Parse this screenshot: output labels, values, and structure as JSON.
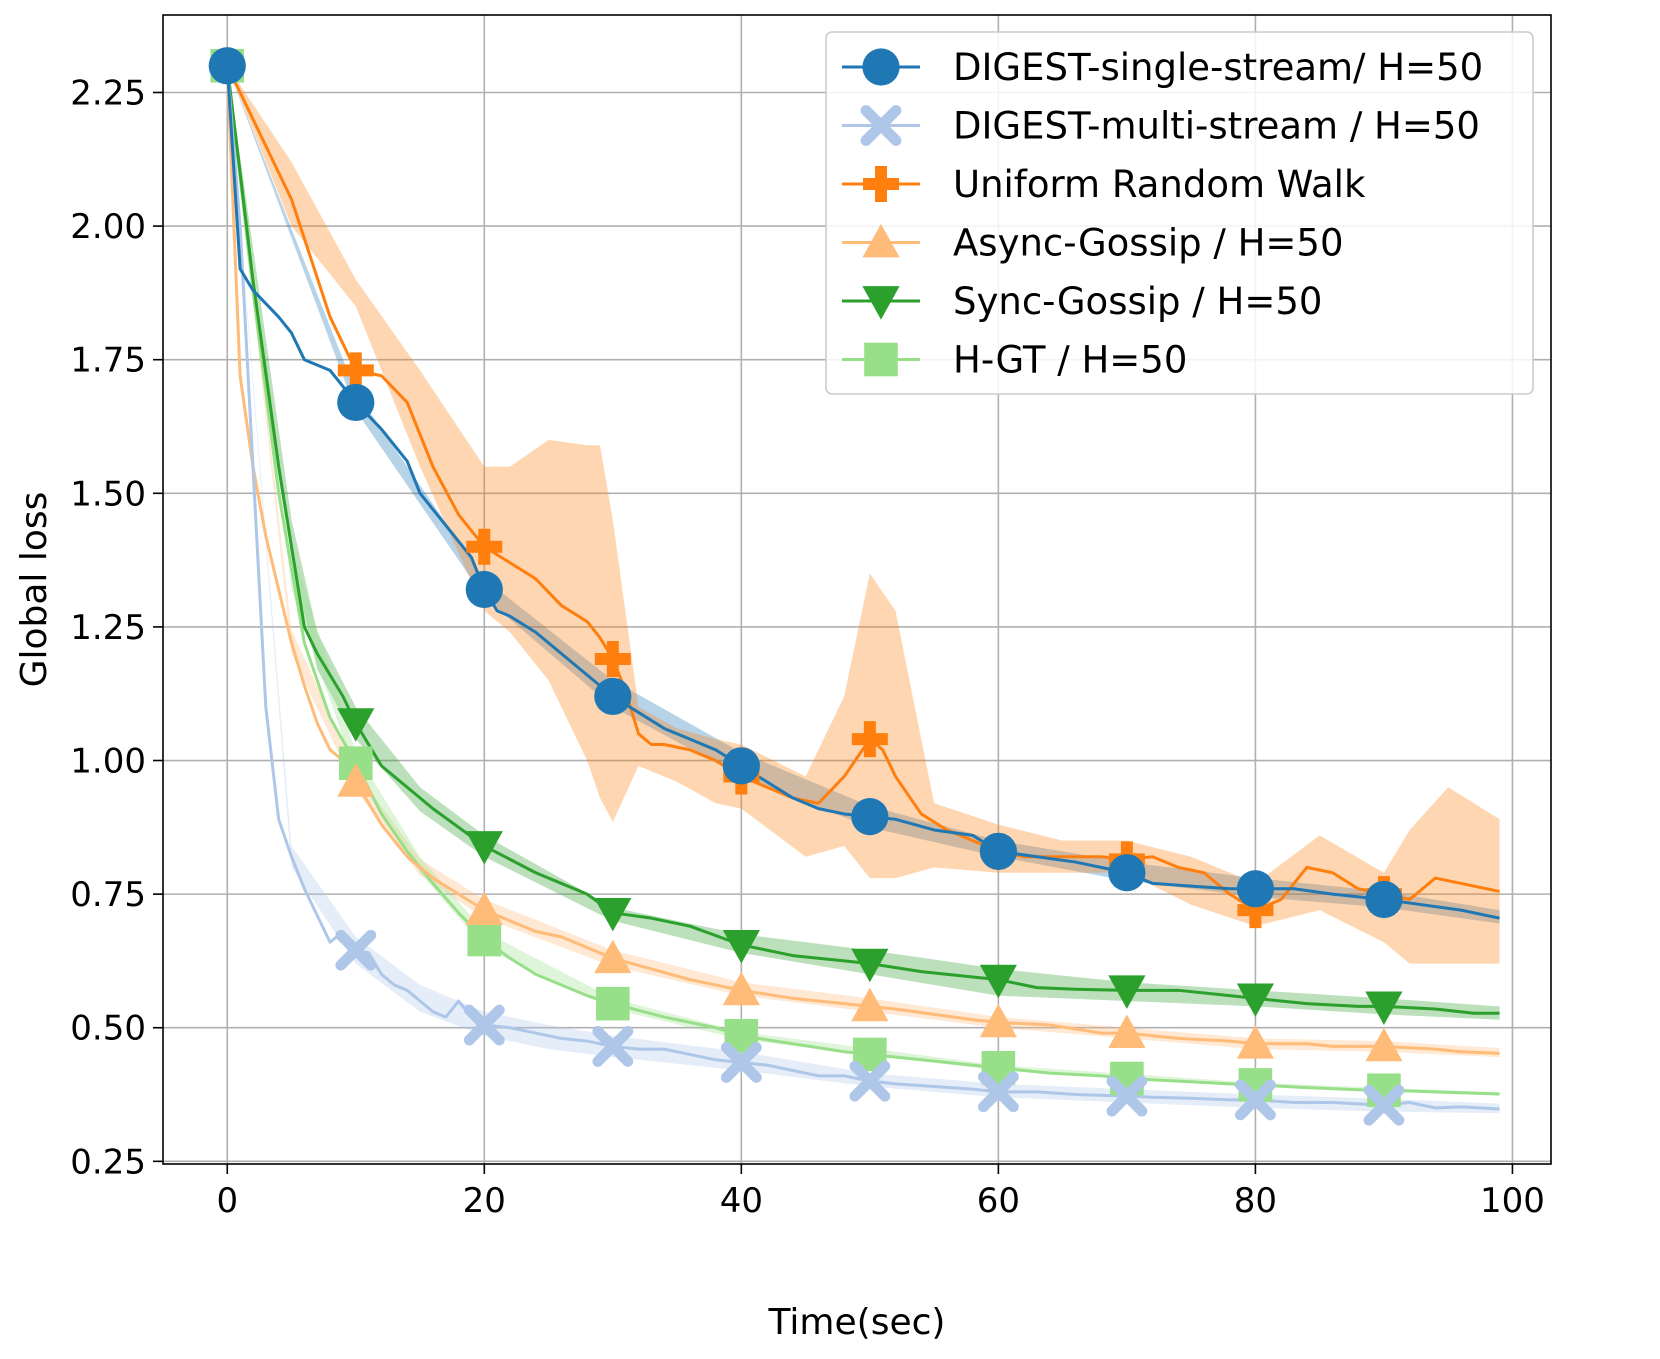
{
  "chart_data": {
    "type": "line",
    "title": "",
    "xlabel": "Time(sec)",
    "ylabel": "Global loss",
    "xlim": [
      -5,
      103
    ],
    "ylim": [
      0.245,
      2.395
    ],
    "grid": true,
    "legend_position": "top-right",
    "x_ticks": [
      0,
      20,
      40,
      60,
      80,
      100
    ],
    "x_tick_labels": [
      "0",
      "20",
      "40",
      "60",
      "80",
      "100"
    ],
    "y_ticks": [
      0.25,
      0.5,
      0.75,
      1.0,
      1.25,
      1.5,
      1.75,
      2.0,
      2.25
    ],
    "y_tick_labels": [
      "0.25",
      "0.50",
      "0.75",
      "1.00",
      "1.25",
      "1.50",
      "1.75",
      "2.00",
      "2.25"
    ],
    "series": [
      {
        "name": "DIGEST-single-stream/ H=50",
        "color": "#1f77b4",
        "marker": "circle",
        "marker_x": [
          0,
          10,
          20,
          30,
          40,
          50,
          60,
          70,
          80,
          90
        ],
        "line_x": [
          0,
          1,
          2,
          4,
          5,
          6,
          8,
          10,
          12,
          14,
          15,
          17,
          19,
          20,
          21,
          22,
          24,
          26,
          28,
          30,
          32,
          34,
          36,
          38,
          40,
          42,
          44,
          46,
          48,
          50,
          52,
          55,
          58,
          60,
          63,
          66,
          70,
          72,
          75,
          78,
          80,
          83,
          86,
          90,
          93,
          96,
          99
        ],
        "line_y": [
          2.3,
          1.92,
          1.88,
          1.83,
          1.8,
          1.75,
          1.73,
          1.67,
          1.62,
          1.56,
          1.5,
          1.44,
          1.38,
          1.32,
          1.28,
          1.27,
          1.24,
          1.2,
          1.16,
          1.12,
          1.09,
          1.06,
          1.04,
          1.02,
          0.99,
          0.96,
          0.93,
          0.91,
          0.9,
          0.895,
          0.89,
          0.87,
          0.86,
          0.83,
          0.82,
          0.81,
          0.79,
          0.77,
          0.765,
          0.76,
          0.76,
          0.76,
          0.75,
          0.74,
          0.73,
          0.72,
          0.705
        ],
        "band_x": [
          0,
          10,
          20,
          30,
          40,
          50,
          60,
          70,
          80,
          90,
          99
        ],
        "band_lo": [
          2.3,
          1.655,
          1.305,
          1.1,
          0.97,
          0.875,
          0.82,
          0.775,
          0.745,
          0.725,
          0.695
        ],
        "band_hi": [
          2.3,
          1.69,
          1.34,
          1.15,
          1.015,
          0.915,
          0.85,
          0.81,
          0.78,
          0.755,
          0.72
        ]
      },
      {
        "name": "DIGEST-multi-stream / H=50",
        "color": "#aec7e8",
        "marker": "x",
        "marker_x": [
          10,
          20,
          30,
          40,
          50,
          60,
          70,
          80,
          90
        ],
        "line_x": [
          0,
          1,
          2,
          3,
          4,
          5,
          6,
          8,
          9,
          10,
          11,
          12,
          13,
          14,
          15,
          16,
          17,
          18,
          19,
          20,
          22,
          24,
          26,
          28,
          30,
          32,
          34,
          36,
          38,
          40,
          42,
          44,
          46,
          48,
          50,
          52,
          55,
          58,
          60,
          63,
          66,
          70,
          72,
          75,
          78,
          80,
          83,
          86,
          90,
          92,
          94,
          96,
          99
        ],
        "line_y": [
          2.3,
          2.0,
          1.55,
          1.1,
          0.89,
          0.82,
          0.76,
          0.66,
          0.68,
          0.645,
          0.64,
          0.6,
          0.58,
          0.57,
          0.55,
          0.53,
          0.52,
          0.55,
          0.52,
          0.505,
          0.5,
          0.49,
          0.48,
          0.475,
          0.465,
          0.46,
          0.46,
          0.45,
          0.44,
          0.435,
          0.43,
          0.42,
          0.41,
          0.41,
          0.4,
          0.395,
          0.39,
          0.385,
          0.38,
          0.38,
          0.375,
          0.372,
          0.37,
          0.368,
          0.365,
          0.365,
          0.36,
          0.36,
          0.355,
          0.36,
          0.35,
          0.352,
          0.348
        ],
        "band_x": [
          0,
          5,
          10,
          15,
          20,
          25,
          30,
          40,
          50,
          60,
          70,
          80,
          90,
          99
        ],
        "band_lo": [
          2.3,
          0.8,
          0.62,
          0.53,
          0.485,
          0.46,
          0.445,
          0.42,
          0.39,
          0.37,
          0.36,
          0.35,
          0.343,
          0.34
        ],
        "band_hi": [
          2.3,
          0.84,
          0.67,
          0.58,
          0.53,
          0.505,
          0.485,
          0.455,
          0.415,
          0.395,
          0.385,
          0.375,
          0.367,
          0.358
        ]
      },
      {
        "name": "Uniform Random Walk",
        "color": "#ff7f0e",
        "marker": "plus",
        "marker_x": [
          10,
          20,
          30,
          40,
          50,
          60,
          70,
          80,
          90
        ],
        "line_x": [
          0,
          2,
          5,
          8,
          10,
          12,
          14,
          16,
          18,
          20,
          22,
          24,
          26,
          28,
          29,
          30,
          31,
          32,
          33,
          34,
          36,
          38,
          40,
          42,
          44,
          46,
          48,
          50,
          51,
          52,
          54,
          56,
          58,
          60,
          62,
          64,
          66,
          68,
          70,
          72,
          74,
          76,
          78,
          80,
          82,
          84,
          86,
          88,
          90,
          92,
          94,
          96,
          99
        ],
        "line_y": [
          2.3,
          2.2,
          2.05,
          1.83,
          1.73,
          1.72,
          1.67,
          1.55,
          1.46,
          1.4,
          1.37,
          1.34,
          1.29,
          1.26,
          1.23,
          1.19,
          1.13,
          1.05,
          1.03,
          1.03,
          1.02,
          1.0,
          0.97,
          0.95,
          0.93,
          0.92,
          0.97,
          1.04,
          1.02,
          0.97,
          0.9,
          0.87,
          0.85,
          0.83,
          0.82,
          0.82,
          0.82,
          0.82,
          0.815,
          0.82,
          0.8,
          0.79,
          0.75,
          0.72,
          0.74,
          0.8,
          0.79,
          0.76,
          0.75,
          0.74,
          0.78,
          0.77,
          0.755
        ],
        "band_x": [
          0,
          5,
          10,
          15,
          20,
          22,
          25,
          28,
          29,
          30,
          32,
          35,
          38,
          40,
          45,
          48,
          50,
          52,
          55,
          60,
          65,
          70,
          75,
          80,
          85,
          90,
          92,
          95,
          99
        ],
        "band_lo": [
          2.3,
          2.0,
          1.85,
          1.55,
          1.28,
          1.24,
          1.15,
          1.0,
          0.93,
          0.885,
          0.99,
          0.96,
          0.92,
          0.91,
          0.82,
          0.84,
          0.78,
          0.78,
          0.8,
          0.79,
          0.79,
          0.79,
          0.73,
          0.69,
          0.72,
          0.66,
          0.62,
          0.62,
          0.62
        ],
        "band_hi": [
          2.3,
          2.12,
          1.9,
          1.73,
          1.55,
          1.55,
          1.6,
          1.59,
          1.59,
          1.45,
          1.1,
          1.06,
          1.04,
          1.03,
          0.97,
          1.12,
          1.35,
          1.28,
          0.92,
          0.88,
          0.85,
          0.85,
          0.82,
          0.77,
          0.86,
          0.79,
          0.87,
          0.95,
          0.89
        ]
      },
      {
        "name": "Async-Gossip / H=50",
        "color": "#ffbb78",
        "marker": "triangle-up",
        "marker_x": [
          10,
          20,
          30,
          40,
          50,
          60,
          70,
          80,
          90
        ],
        "line_x": [
          0,
          1,
          2,
          3,
          4,
          5,
          6,
          7,
          8,
          9,
          10,
          12,
          14,
          16,
          18,
          20,
          22,
          24,
          26,
          28,
          30,
          33,
          36,
          40,
          44,
          48,
          50,
          52,
          55,
          58,
          60,
          64,
          68,
          70,
          74,
          78,
          80,
          84,
          86,
          90,
          94,
          96,
          99
        ],
        "line_y": [
          2.3,
          1.72,
          1.55,
          1.42,
          1.32,
          1.22,
          1.14,
          1.07,
          1.02,
          1.0,
          0.96,
          0.88,
          0.82,
          0.78,
          0.75,
          0.72,
          0.7,
          0.68,
          0.67,
          0.65,
          0.63,
          0.61,
          0.59,
          0.57,
          0.555,
          0.545,
          0.54,
          0.535,
          0.525,
          0.515,
          0.51,
          0.505,
          0.49,
          0.49,
          0.48,
          0.475,
          0.47,
          0.47,
          0.465,
          0.465,
          0.46,
          0.455,
          0.452
        ],
        "band_x": [
          0,
          5,
          10,
          15,
          20,
          30,
          40,
          50,
          60,
          70,
          80,
          90,
          99
        ],
        "band_lo": [
          2.3,
          1.2,
          0.945,
          0.785,
          0.705,
          0.615,
          0.56,
          0.53,
          0.5,
          0.48,
          0.46,
          0.455,
          0.445
        ],
        "band_hi": [
          2.3,
          1.245,
          0.98,
          0.815,
          0.74,
          0.645,
          0.585,
          0.555,
          0.52,
          0.5,
          0.48,
          0.475,
          0.462
        ]
      },
      {
        "name": "Sync-Gossip / H=50",
        "color": "#2ca02c",
        "marker": "triangle-down",
        "marker_x": [
          10,
          20,
          30,
          40,
          50,
          60,
          70,
          80,
          90
        ],
        "line_x": [
          0,
          2,
          4,
          6,
          7,
          8,
          9,
          10,
          12,
          14,
          16,
          18,
          20,
          22,
          24,
          26,
          28,
          30,
          33,
          36,
          40,
          44,
          48,
          50,
          54,
          58,
          60,
          63,
          66,
          70,
          74,
          78,
          80,
          84,
          88,
          90,
          94,
          97,
          99
        ],
        "line_y": [
          2.3,
          1.9,
          1.55,
          1.25,
          1.2,
          1.16,
          1.12,
          1.07,
          0.99,
          0.95,
          0.91,
          0.875,
          0.84,
          0.815,
          0.79,
          0.77,
          0.75,
          0.715,
          0.705,
          0.69,
          0.655,
          0.635,
          0.625,
          0.62,
          0.605,
          0.595,
          0.59,
          0.575,
          0.572,
          0.57,
          0.57,
          0.56,
          0.555,
          0.545,
          0.54,
          0.54,
          0.535,
          0.527,
          0.527
        ],
        "band_x": [
          0,
          5,
          7,
          10,
          15,
          20,
          30,
          40,
          50,
          60,
          70,
          80,
          90,
          99
        ],
        "band_lo": [
          2.3,
          1.38,
          1.17,
          1.04,
          0.905,
          0.82,
          0.7,
          0.64,
          0.6,
          0.56,
          0.55,
          0.54,
          0.525,
          0.515
        ],
        "band_hi": [
          2.3,
          1.45,
          1.24,
          1.1,
          0.95,
          0.86,
          0.725,
          0.675,
          0.645,
          0.61,
          0.585,
          0.57,
          0.555,
          0.54
        ]
      },
      {
        "name": "H-GT / H=50",
        "color": "#98df8a",
        "marker": "square",
        "marker_x": [
          0,
          10,
          20,
          30,
          40,
          50,
          60,
          70,
          80,
          90
        ],
        "line_x": [
          0,
          2,
          4,
          6,
          8,
          10,
          12,
          14,
          16,
          18,
          20,
          22,
          24,
          26,
          28,
          30,
          34,
          38,
          40,
          44,
          48,
          50,
          54,
          58,
          60,
          64,
          68,
          70,
          74,
          78,
          80,
          84,
          88,
          90,
          94,
          99
        ],
        "line_y": [
          2.3,
          1.88,
          1.5,
          1.22,
          1.08,
          0.995,
          0.9,
          0.83,
          0.77,
          0.715,
          0.665,
          0.63,
          0.6,
          0.58,
          0.56,
          0.545,
          0.52,
          0.5,
          0.485,
          0.47,
          0.455,
          0.45,
          0.44,
          0.43,
          0.425,
          0.415,
          0.41,
          0.405,
          0.4,
          0.395,
          0.393,
          0.388,
          0.384,
          0.383,
          0.38,
          0.376
        ],
        "band_x": [
          0,
          5,
          10,
          15,
          20,
          30,
          40,
          60,
          80,
          99
        ],
        "band_lo": [
          2.3,
          1.32,
          0.975,
          0.79,
          0.65,
          0.535,
          0.478,
          0.42,
          0.389,
          0.373
        ],
        "band_hi": [
          2.3,
          1.4,
          1.015,
          0.82,
          0.68,
          0.555,
          0.492,
          0.43,
          0.397,
          0.379
        ]
      }
    ]
  }
}
